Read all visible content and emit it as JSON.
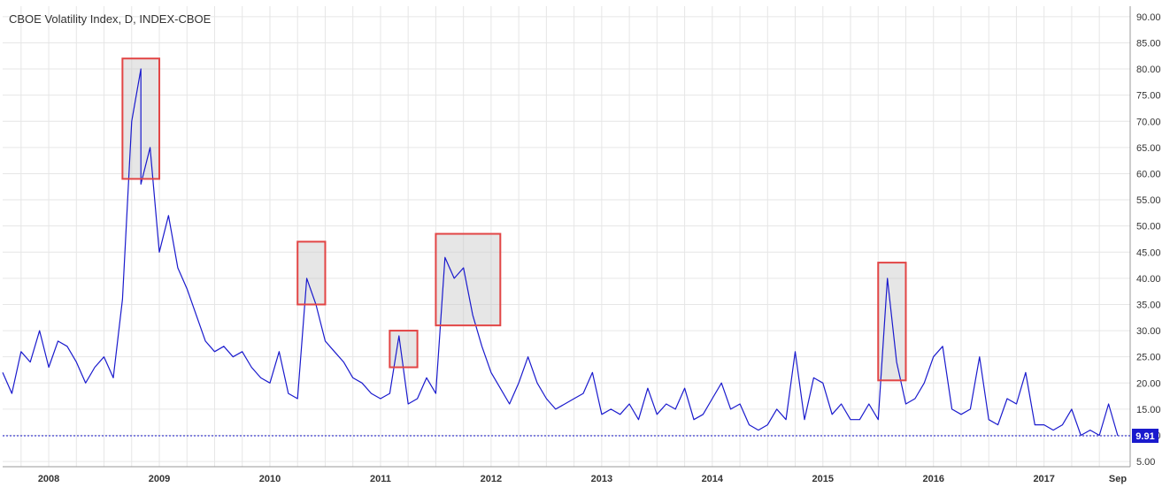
{
  "chart_data": {
    "type": "line",
    "title": "CBOE Volatility Index, D, INDEX-CBOE",
    "x_tick_labels": [
      "2008",
      "2009",
      "2010",
      "2011",
      "2012",
      "2013",
      "2014",
      "2015",
      "2016",
      "2017",
      "Sep"
    ],
    "y_tick_labels": [
      "5.00",
      "10.00",
      "15.00",
      "20.00",
      "25.00",
      "30.00",
      "35.00",
      "40.00",
      "45.00",
      "50.00",
      "55.00",
      "60.00",
      "65.00",
      "70.00",
      "75.00",
      "80.00",
      "85.00",
      "90.00"
    ],
    "ylim": [
      4,
      92
    ],
    "xlim": [
      "2007-08",
      "2017-09"
    ],
    "grid": true,
    "last_value_label": "9.91",
    "last_value": 9.91,
    "series": [
      {
        "color": "#1a1acd",
        "points": [
          [
            "2007-08",
            22
          ],
          [
            "2007-09",
            18
          ],
          [
            "2007-10",
            26
          ],
          [
            "2007-11",
            24
          ],
          [
            "2007-12",
            30
          ],
          [
            "2008-01",
            23
          ],
          [
            "2008-02",
            28
          ],
          [
            "2008-03",
            27
          ],
          [
            "2008-04",
            24
          ],
          [
            "2008-05",
            20
          ],
          [
            "2008-06",
            23
          ],
          [
            "2008-07",
            25
          ],
          [
            "2008-08",
            21
          ],
          [
            "2008-09",
            36
          ],
          [
            "2008-10",
            70
          ],
          [
            "2008-11",
            80
          ],
          [
            "2008-11",
            58
          ],
          [
            "2008-12",
            65
          ],
          [
            "2009-01",
            45
          ],
          [
            "2009-02",
            52
          ],
          [
            "2009-03",
            42
          ],
          [
            "2009-04",
            38
          ],
          [
            "2009-05",
            33
          ],
          [
            "2009-06",
            28
          ],
          [
            "2009-07",
            26
          ],
          [
            "2009-08",
            27
          ],
          [
            "2009-09",
            25
          ],
          [
            "2009-10",
            26
          ],
          [
            "2009-11",
            23
          ],
          [
            "2009-12",
            21
          ],
          [
            "2010-01",
            20
          ],
          [
            "2010-02",
            26
          ],
          [
            "2010-03",
            18
          ],
          [
            "2010-04",
            17
          ],
          [
            "2010-05",
            40
          ],
          [
            "2010-06",
            35
          ],
          [
            "2010-07",
            28
          ],
          [
            "2010-08",
            26
          ],
          [
            "2010-09",
            24
          ],
          [
            "2010-10",
            21
          ],
          [
            "2010-11",
            20
          ],
          [
            "2010-12",
            18
          ],
          [
            "2011-01",
            17
          ],
          [
            "2011-02",
            18
          ],
          [
            "2011-03",
            29
          ],
          [
            "2011-04",
            16
          ],
          [
            "2011-05",
            17
          ],
          [
            "2011-06",
            21
          ],
          [
            "2011-07",
            18
          ],
          [
            "2011-08",
            44
          ],
          [
            "2011-09",
            40
          ],
          [
            "2011-10",
            42
          ],
          [
            "2011-11",
            33
          ],
          [
            "2011-12",
            27
          ],
          [
            "2012-01",
            22
          ],
          [
            "2012-02",
            19
          ],
          [
            "2012-03",
            16
          ],
          [
            "2012-04",
            20
          ],
          [
            "2012-05",
            25
          ],
          [
            "2012-06",
            20
          ],
          [
            "2012-07",
            17
          ],
          [
            "2012-08",
            15
          ],
          [
            "2012-09",
            16
          ],
          [
            "2012-10",
            17
          ],
          [
            "2012-11",
            18
          ],
          [
            "2012-12",
            22
          ],
          [
            "2013-01",
            14
          ],
          [
            "2013-02",
            15
          ],
          [
            "2013-03",
            14
          ],
          [
            "2013-04",
            16
          ],
          [
            "2013-05",
            13
          ],
          [
            "2013-06",
            19
          ],
          [
            "2013-07",
            14
          ],
          [
            "2013-08",
            16
          ],
          [
            "2013-09",
            15
          ],
          [
            "2013-10",
            19
          ],
          [
            "2013-11",
            13
          ],
          [
            "2013-12",
            14
          ],
          [
            "2014-01",
            17
          ],
          [
            "2014-02",
            20
          ],
          [
            "2014-03",
            15
          ],
          [
            "2014-04",
            16
          ],
          [
            "2014-05",
            12
          ],
          [
            "2014-06",
            11
          ],
          [
            "2014-07",
            12
          ],
          [
            "2014-08",
            15
          ],
          [
            "2014-09",
            13
          ],
          [
            "2014-10",
            26
          ],
          [
            "2014-11",
            13
          ],
          [
            "2014-12",
            21
          ],
          [
            "2015-01",
            20
          ],
          [
            "2015-02",
            14
          ],
          [
            "2015-03",
            16
          ],
          [
            "2015-04",
            13
          ],
          [
            "2015-05",
            13
          ],
          [
            "2015-06",
            16
          ],
          [
            "2015-07",
            13
          ],
          [
            "2015-08",
            40
          ],
          [
            "2015-09",
            24
          ],
          [
            "2015-10",
            16
          ],
          [
            "2015-11",
            17
          ],
          [
            "2015-12",
            20
          ],
          [
            "2016-01",
            25
          ],
          [
            "2016-02",
            27
          ],
          [
            "2016-03",
            15
          ],
          [
            "2016-04",
            14
          ],
          [
            "2016-05",
            15
          ],
          [
            "2016-06",
            25
          ],
          [
            "2016-07",
            13
          ],
          [
            "2016-08",
            12
          ],
          [
            "2016-09",
            17
          ],
          [
            "2016-10",
            16
          ],
          [
            "2016-11",
            22
          ],
          [
            "2016-12",
            12
          ],
          [
            "2017-01",
            12
          ],
          [
            "2017-02",
            11
          ],
          [
            "2017-03",
            12
          ],
          [
            "2017-04",
            15
          ],
          [
            "2017-05",
            10
          ],
          [
            "2017-06",
            11
          ],
          [
            "2017-07",
            10
          ],
          [
            "2017-08",
            16
          ],
          [
            "2017-09",
            9.91
          ]
        ]
      }
    ],
    "highlight_boxes": [
      {
        "x": [
          "2008-09",
          "2009-01"
        ],
        "y": [
          59,
          82
        ]
      },
      {
        "x": [
          "2010-04",
          "2010-07"
        ],
        "y": [
          35,
          47
        ]
      },
      {
        "x": [
          "2011-02",
          "2011-05"
        ],
        "y": [
          23,
          30
        ]
      },
      {
        "x": [
          "2011-07",
          "2012-02"
        ],
        "y": [
          31,
          48.5
        ]
      },
      {
        "x": [
          "2015-07",
          "2015-10"
        ],
        "y": [
          20.5,
          43
        ]
      }
    ]
  },
  "colors": {
    "line": "#1a1acd",
    "box_stroke": "#e24545",
    "box_fill": "#c8c8c8",
    "last_value_bg": "#1a1acd",
    "grid": "#e6e6e6"
  }
}
